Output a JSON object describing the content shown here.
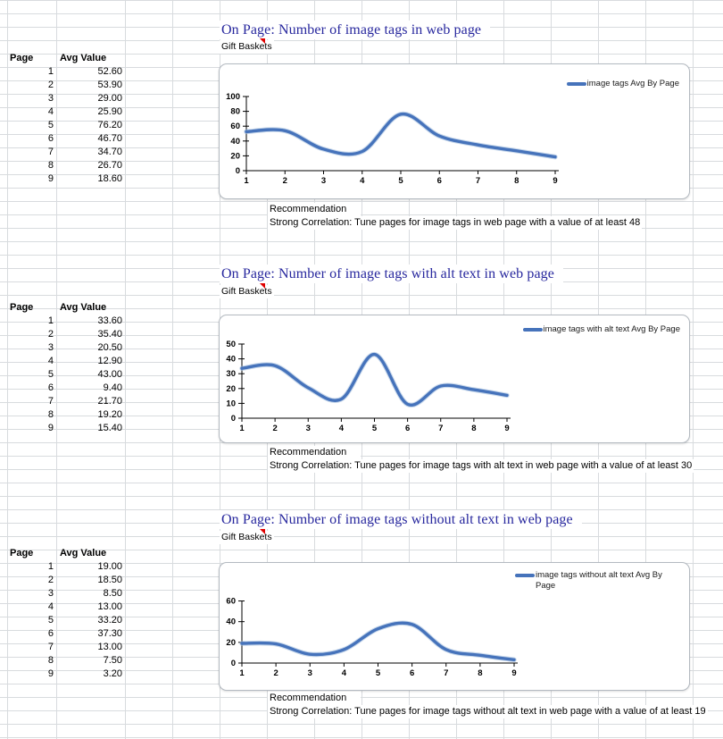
{
  "colors": {
    "title_text": "#28289e",
    "line": "#4673bb",
    "line_halo": "#a3bede",
    "axis": "#000000",
    "grid_line": "#d8dbde",
    "comment_marker": "#e00000"
  },
  "sections": [
    {
      "title": "On Page: Number of image tags in web page",
      "product": "Gift Baskets",
      "table": {
        "headers": [
          "Page",
          "Avg Value"
        ],
        "rows": [
          [
            "1",
            "52.60"
          ],
          [
            "2",
            "53.90"
          ],
          [
            "3",
            "29.00"
          ],
          [
            "4",
            "25.90"
          ],
          [
            "5",
            "76.20"
          ],
          [
            "6",
            "46.70"
          ],
          [
            "7",
            "34.70"
          ],
          [
            "8",
            "26.70"
          ],
          [
            "9",
            "18.60"
          ]
        ]
      },
      "recommendation_label": "Recommendation",
      "recommendation": "Strong Correlation: Tune pages for image tags in web page with a value of at least 48",
      "chart_data": {
        "type": "line",
        "x": [
          1,
          2,
          3,
          4,
          5,
          6,
          7,
          8,
          9
        ],
        "series": [
          {
            "name": "image tags Avg By Page",
            "values": [
              52.6,
              53.9,
              29.0,
              25.9,
              76.2,
              46.7,
              34.7,
              26.7,
              18.6
            ]
          }
        ],
        "title": "",
        "xlabel": "",
        "ylabel": "",
        "ylim": [
          0,
          100
        ],
        "yticks": [
          0,
          20,
          40,
          60,
          80,
          100
        ],
        "legend_position": "top-right",
        "grid": false,
        "smooth": true
      }
    },
    {
      "title": "On Page: Number of image tags with alt text in web page",
      "product": "Gift Baskets",
      "table": {
        "headers": [
          "Page",
          "Avg Value"
        ],
        "rows": [
          [
            "1",
            "33.60"
          ],
          [
            "2",
            "35.40"
          ],
          [
            "3",
            "20.50"
          ],
          [
            "4",
            "12.90"
          ],
          [
            "5",
            "43.00"
          ],
          [
            "6",
            "9.40"
          ],
          [
            "7",
            "21.70"
          ],
          [
            "8",
            "19.20"
          ],
          [
            "9",
            "15.40"
          ]
        ]
      },
      "recommendation_label": "Recommendation",
      "recommendation": "Strong Correlation: Tune pages for image tags with alt text in web page with a value of at least 30",
      "chart_data": {
        "type": "line",
        "x": [
          1,
          2,
          3,
          4,
          5,
          6,
          7,
          8,
          9
        ],
        "series": [
          {
            "name": "image tags with alt text Avg By Page",
            "values": [
              33.6,
              35.4,
              20.5,
              12.9,
              43.0,
              9.4,
              21.7,
              19.2,
              15.4
            ]
          }
        ],
        "title": "",
        "xlabel": "",
        "ylabel": "",
        "ylim": [
          0,
          50
        ],
        "yticks": [
          0,
          10,
          20,
          30,
          40,
          50
        ],
        "legend_position": "top-right",
        "grid": false,
        "smooth": true
      }
    },
    {
      "title": "On Page: Number of image tags without alt text in web page",
      "product": "Gift Baskets",
      "table": {
        "headers": [
          "Page",
          "Avg Value"
        ],
        "rows": [
          [
            "1",
            "19.00"
          ],
          [
            "2",
            "18.50"
          ],
          [
            "3",
            "8.50"
          ],
          [
            "4",
            "13.00"
          ],
          [
            "5",
            "33.20"
          ],
          [
            "6",
            "37.30"
          ],
          [
            "7",
            "13.00"
          ],
          [
            "8",
            "7.50"
          ],
          [
            "9",
            "3.20"
          ]
        ]
      },
      "recommendation_label": "Recommendation",
      "recommendation": "Strong Correlation: Tune pages for image tags without alt text in web page with a value of at least 19",
      "chart_data": {
        "type": "line",
        "x": [
          1,
          2,
          3,
          4,
          5,
          6,
          7,
          8,
          9
        ],
        "series": [
          {
            "name": "image tags without alt text Avg By Page",
            "values": [
              19.0,
              18.5,
              8.5,
              13.0,
              33.2,
              37.3,
              13.0,
              7.5,
              3.2
            ]
          }
        ],
        "title": "",
        "xlabel": "",
        "ylabel": "",
        "ylim": [
          0,
          60
        ],
        "yticks": [
          0,
          20,
          40,
          60
        ],
        "legend_position": "top-right",
        "grid": false,
        "smooth": true
      }
    }
  ]
}
